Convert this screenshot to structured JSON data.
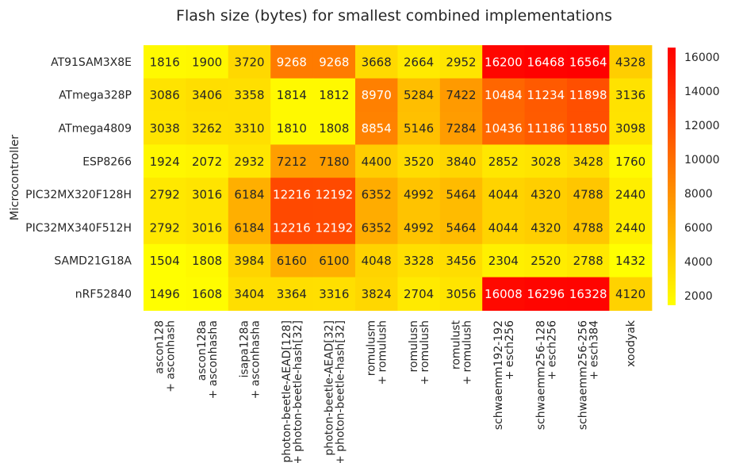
{
  "chart_data": {
    "type": "heatmap",
    "title": "Flash size (bytes) for smallest combined implementations",
    "ylabel": "Microcontroller",
    "xlabel": "",
    "rows": [
      "AT91SAM3X8E",
      "ATmega328P",
      "ATmega4809",
      "ESP8266",
      "PIC32MX320F128H",
      "PIC32MX340F512H",
      "SAMD21G18A",
      "nRF52840"
    ],
    "columns": [
      [
        "ascon128",
        "+ asconhash"
      ],
      [
        "ascon128a",
        "+ asconhasha"
      ],
      [
        "isapa128a",
        "+ asconhasha"
      ],
      [
        "photon-beetle-AEAD[128]",
        "+ photon-beetle-hash[32]"
      ],
      [
        "photon-beetle-AEAD[32]",
        "+ photon-beetle-hash[32]"
      ],
      [
        "romulusm",
        "+ romulush"
      ],
      [
        "romulusn",
        "+ romulush"
      ],
      [
        "romulust",
        "+ romulush"
      ],
      [
        "schwaemm192-192",
        "+ esch256"
      ],
      [
        "schwaemm256-128",
        "+ esch256"
      ],
      [
        "schwaemm256-256",
        "+ esch384"
      ],
      [
        "xoodyak"
      ]
    ],
    "values": [
      [
        1816,
        1900,
        3720,
        9268,
        9268,
        3668,
        2664,
        2952,
        16200,
        16468,
        16564,
        4328
      ],
      [
        3086,
        3406,
        3358,
        1814,
        1812,
        8970,
        5284,
        7422,
        10484,
        11234,
        11898,
        3136
      ],
      [
        3038,
        3262,
        3310,
        1810,
        1808,
        8854,
        5146,
        7284,
        10436,
        11186,
        11850,
        3098
      ],
      [
        1924,
        2072,
        2932,
        7212,
        7180,
        4400,
        3520,
        3840,
        2852,
        3028,
        3428,
        1760
      ],
      [
        2792,
        3016,
        6184,
        12216,
        12192,
        6352,
        4992,
        5464,
        4044,
        4320,
        4788,
        2440
      ],
      [
        2792,
        3016,
        6184,
        12216,
        12192,
        6352,
        4992,
        5464,
        4044,
        4320,
        4788,
        2440
      ],
      [
        1504,
        1808,
        3984,
        6160,
        6100,
        4048,
        3328,
        3456,
        2304,
        2520,
        2788,
        1432
      ],
      [
        1496,
        1608,
        3404,
        3364,
        3316,
        3824,
        2704,
        3056,
        16008,
        16296,
        16328,
        4120
      ]
    ],
    "colormap": "autumn_r",
    "colormap_low": "#ffff00",
    "colormap_high": "#ff0000",
    "vmin": 1432,
    "vmax": 16564,
    "colorbar_ticks": [
      2000,
      4000,
      6000,
      8000,
      10000,
      12000,
      14000,
      16000
    ],
    "annotation_light_threshold": 8500,
    "annotation_dark_color": "#262626",
    "annotation_light_color": "#ffffff"
  }
}
